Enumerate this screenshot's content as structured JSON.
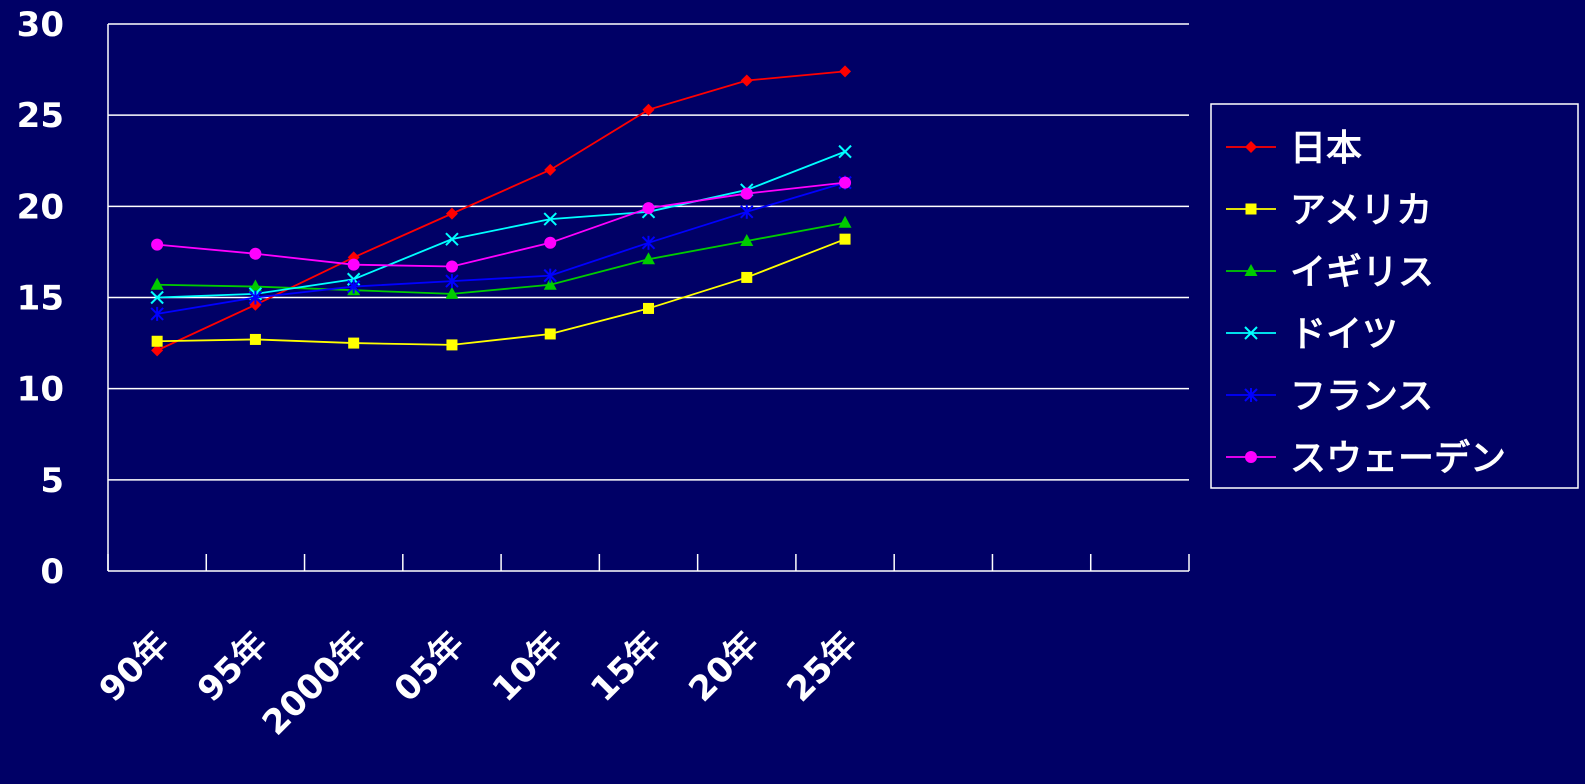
{
  "chart_data": {
    "type": "line",
    "categories": [
      "90年",
      "95年",
      "2000年",
      "05年",
      "10年",
      "15年",
      "20年",
      "25年"
    ],
    "x_slots": 11,
    "ylim": [
      0,
      30
    ],
    "yticks": [
      0,
      5,
      10,
      15,
      20,
      25,
      30
    ],
    "grid": true,
    "legend": "right",
    "series": [
      {
        "name": "日本",
        "color": "#ff0000",
        "marker": "diamond",
        "values": [
          12.1,
          14.6,
          17.2,
          19.6,
          22.0,
          25.3,
          26.9,
          27.4
        ]
      },
      {
        "name": "アメリカ",
        "color": "#ffff00",
        "marker": "square",
        "values": [
          12.6,
          12.7,
          12.5,
          12.4,
          13.0,
          14.4,
          16.1,
          18.2
        ]
      },
      {
        "name": "イギリス",
        "color": "#00cc00",
        "marker": "triangle",
        "values": [
          15.7,
          15.6,
          15.4,
          15.2,
          15.7,
          17.1,
          18.1,
          19.1
        ]
      },
      {
        "name": "ドイツ",
        "color": "#00ffff",
        "marker": "x",
        "values": [
          15.0,
          15.2,
          16.0,
          18.2,
          19.3,
          19.7,
          20.9,
          23.0
        ]
      },
      {
        "name": "フランス",
        "color": "#0000ff",
        "marker": "star",
        "values": [
          14.1,
          15.0,
          15.6,
          15.9,
          16.2,
          18.0,
          19.7,
          21.3
        ]
      },
      {
        "name": "スウェーデン",
        "color": "#ff00ff",
        "marker": "circle",
        "values": [
          17.9,
          17.4,
          16.8,
          16.7,
          18.0,
          19.9,
          20.7,
          21.3
        ]
      }
    ]
  }
}
